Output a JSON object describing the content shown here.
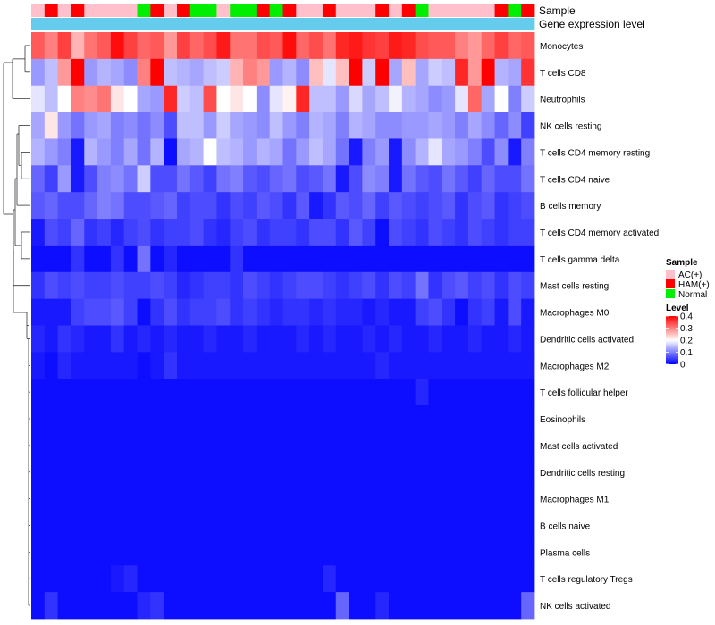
{
  "chart_data": {
    "type": "heatmap",
    "title": "",
    "annotation_tracks": [
      "Sample",
      "Gene expression level"
    ],
    "rows": [
      "Monocytes",
      "T cells CD8",
      "Neutrophils",
      "NK cells resting",
      "T cells CD4 memory resting",
      "T cells CD4 naive",
      "B cells memory",
      "T cells CD4 memory activated",
      "T cells gamma delta",
      "Mast cells resting",
      "Macrophages M0",
      "Dendritic cells activated",
      "Macrophages M2",
      "T cells follicular helper",
      "Eosinophils",
      "Mast cells activated",
      "Dendritic cells resting",
      "Macrophages M1",
      "B cells naive",
      "Plasma cells",
      "T cells regulatory  Tregs",
      "NK cells activated"
    ],
    "sample_groups": [
      "AC",
      "HAM",
      "AC",
      "HAM",
      "AC",
      "AC",
      "AC",
      "AC",
      "Normal",
      "HAM",
      "AC",
      "HAM",
      "Normal",
      "Normal",
      "AC",
      "Normal",
      "Normal",
      "HAM",
      "Normal",
      "HAM",
      "AC",
      "AC",
      "HAM",
      "AC",
      "AC",
      "AC",
      "HAM",
      "AC",
      "HAM",
      "Normal",
      "AC",
      "AC",
      "AC",
      "AC",
      "AC",
      "HAM",
      "Normal",
      "HAM"
    ],
    "values": [
      [
        0.33,
        0.3,
        0.35,
        0.26,
        0.31,
        0.33,
        0.39,
        0.35,
        0.32,
        0.33,
        0.28,
        0.35,
        0.32,
        0.34,
        0.38,
        0.31,
        0.31,
        0.34,
        0.33,
        0.39,
        0.32,
        0.34,
        0.31,
        0.37,
        0.38,
        0.36,
        0.35,
        0.38,
        0.37,
        0.34,
        0.33,
        0.33,
        0.3,
        0.28,
        0.32,
        0.35,
        0.32,
        0.33
      ],
      [
        0.12,
        0.15,
        0.28,
        0.4,
        0.12,
        0.14,
        0.13,
        0.11,
        0.3,
        0.4,
        0.15,
        0.14,
        0.13,
        0.15,
        0.16,
        0.26,
        0.3,
        0.28,
        0.12,
        0.14,
        0.11,
        0.25,
        0.18,
        0.25,
        0.4,
        0.16,
        0.4,
        0.13,
        0.25,
        0.13,
        0.16,
        0.15,
        0.37,
        0.28,
        0.4,
        0.14,
        0.13,
        0.36
      ],
      [
        0.18,
        0.15,
        0.2,
        0.3,
        0.29,
        0.31,
        0.22,
        0.2,
        0.13,
        0.12,
        0.37,
        0.16,
        0.15,
        0.34,
        0.2,
        0.22,
        0.2,
        0.11,
        0.18,
        0.21,
        0.37,
        0.15,
        0.15,
        0.12,
        0.17,
        0.13,
        0.15,
        0.19,
        0.14,
        0.13,
        0.11,
        0.12,
        0.18,
        0.32,
        0.13,
        0.2,
        0.1,
        0.16
      ],
      [
        0.13,
        0.22,
        0.12,
        0.09,
        0.12,
        0.13,
        0.1,
        0.11,
        0.09,
        0.11,
        0.06,
        0.15,
        0.15,
        0.12,
        0.16,
        0.13,
        0.12,
        0.11,
        0.15,
        0.12,
        0.1,
        0.14,
        0.13,
        0.1,
        0.14,
        0.13,
        0.11,
        0.11,
        0.12,
        0.12,
        0.13,
        0.12,
        0.1,
        0.13,
        0.11,
        0.08,
        0.11,
        0.05
      ],
      [
        0.14,
        0.12,
        0.1,
        0.02,
        0.14,
        0.12,
        0.1,
        0.13,
        0.09,
        0.14,
        0.01,
        0.13,
        0.14,
        0.2,
        0.15,
        0.14,
        0.12,
        0.14,
        0.13,
        0.09,
        0.12,
        0.15,
        0.13,
        0.09,
        0.02,
        0.1,
        0.12,
        0.02,
        0.11,
        0.14,
        0.18,
        0.13,
        0.12,
        0.1,
        0.06,
        0.11,
        0.02,
        0.1
      ],
      [
        0.08,
        0.05,
        0.12,
        0.02,
        0.06,
        0.1,
        0.11,
        0.09,
        0.16,
        0.06,
        0.06,
        0.09,
        0.07,
        0.05,
        0.09,
        0.1,
        0.07,
        0.06,
        0.08,
        0.09,
        0.06,
        0.07,
        0.09,
        0.02,
        0.06,
        0.11,
        0.1,
        0.02,
        0.09,
        0.07,
        0.06,
        0.09,
        0.07,
        0.05,
        0.08,
        0.06,
        0.06,
        0.09
      ],
      [
        0.07,
        0.08,
        0.06,
        0.06,
        0.08,
        0.1,
        0.09,
        0.06,
        0.06,
        0.07,
        0.08,
        0.05,
        0.06,
        0.06,
        0.04,
        0.06,
        0.05,
        0.07,
        0.06,
        0.04,
        0.07,
        0.02,
        0.04,
        0.07,
        0.06,
        0.08,
        0.05,
        0.07,
        0.06,
        0.05,
        0.06,
        0.07,
        0.04,
        0.06,
        0.07,
        0.04,
        0.05,
        0.06
      ],
      [
        0.02,
        0.06,
        0.05,
        0.08,
        0.04,
        0.05,
        0.03,
        0.05,
        0.06,
        0.04,
        0.05,
        0.05,
        0.06,
        0.04,
        0.03,
        0.05,
        0.06,
        0.04,
        0.05,
        0.05,
        0.04,
        0.06,
        0.06,
        0.04,
        0.07,
        0.05,
        0.01,
        0.06,
        0.05,
        0.04,
        0.06,
        0.05,
        0.04,
        0.06,
        0.05,
        0.04,
        0.05,
        0.05
      ],
      [
        0.01,
        0.01,
        0.01,
        0.04,
        0.01,
        0.01,
        0.04,
        0.01,
        0.09,
        0.01,
        0.03,
        0.01,
        0.01,
        0.01,
        0.01,
        0.04,
        0.01,
        0.01,
        0.01,
        0.01,
        0.01,
        0.01,
        0.01,
        0.01,
        0.01,
        0.01,
        0.01,
        0.01,
        0.01,
        0.01,
        0.01,
        0.01,
        0.01,
        0.01,
        0.01,
        0.01,
        0.01,
        0.01
      ],
      [
        0.04,
        0.06,
        0.05,
        0.06,
        0.05,
        0.05,
        0.06,
        0.05,
        0.05,
        0.06,
        0.05,
        0.03,
        0.04,
        0.05,
        0.05,
        0.04,
        0.06,
        0.05,
        0.04,
        0.05,
        0.06,
        0.06,
        0.05,
        0.04,
        0.05,
        0.06,
        0.04,
        0.06,
        0.05,
        0.09,
        0.04,
        0.06,
        0.07,
        0.05,
        0.06,
        0.04,
        0.06,
        0.05
      ],
      [
        0.02,
        0.02,
        0.02,
        0.05,
        0.06,
        0.06,
        0.07,
        0.05,
        0.01,
        0.04,
        0.06,
        0.04,
        0.05,
        0.05,
        0.06,
        0.04,
        0.05,
        0.04,
        0.03,
        0.04,
        0.04,
        0.03,
        0.04,
        0.03,
        0.03,
        0.02,
        0.03,
        0.02,
        0.02,
        0.05,
        0.06,
        0.04,
        0.01,
        0.04,
        0.05,
        0.02,
        0.06,
        0.02
      ],
      [
        0.03,
        0.02,
        0.04,
        0.03,
        0.02,
        0.02,
        0.04,
        0.02,
        0.03,
        0.02,
        0.03,
        0.02,
        0.02,
        0.03,
        0.02,
        0.02,
        0.03,
        0.02,
        0.02,
        0.02,
        0.03,
        0.02,
        0.03,
        0.02,
        0.02,
        0.03,
        0.02,
        0.03,
        0.02,
        0.02,
        0.03,
        0.02,
        0.02,
        0.03,
        0.02,
        0.02,
        0.03,
        0.02
      ],
      [
        0.02,
        0.01,
        0.03,
        0.02,
        0.02,
        0.02,
        0.02,
        0.02,
        0.01,
        0.02,
        0.04,
        0.02,
        0.02,
        0.02,
        0.02,
        0.02,
        0.02,
        0.02,
        0.02,
        0.02,
        0.02,
        0.02,
        0.02,
        0.02,
        0.02,
        0.02,
        0.03,
        0.02,
        0.02,
        0.02,
        0.02,
        0.02,
        0.02,
        0.02,
        0.02,
        0.02,
        0.02,
        0.02
      ],
      [
        0.01,
        0.01,
        0.01,
        0.01,
        0.01,
        0.01,
        0.01,
        0.01,
        0.01,
        0.01,
        0.01,
        0.01,
        0.01,
        0.01,
        0.01,
        0.01,
        0.01,
        0.01,
        0.01,
        0.01,
        0.01,
        0.01,
        0.01,
        0.01,
        0.01,
        0.01,
        0.01,
        0.01,
        0.01,
        0.03,
        0.01,
        0.01,
        0.01,
        0.01,
        0.01,
        0.01,
        0.01,
        0.01
      ],
      [
        0.01,
        0.01,
        0.01,
        0.01,
        0.01,
        0.01,
        0.01,
        0.01,
        0.01,
        0.01,
        0.01,
        0.01,
        0.01,
        0.01,
        0.01,
        0.01,
        0.01,
        0.01,
        0.01,
        0.01,
        0.01,
        0.01,
        0.01,
        0.01,
        0.01,
        0.01,
        0.01,
        0.01,
        0.01,
        0.01,
        0.01,
        0.01,
        0.01,
        0.01,
        0.01,
        0.01,
        0.01,
        0.01
      ],
      [
        0.01,
        0.01,
        0.01,
        0.01,
        0.01,
        0.01,
        0.01,
        0.01,
        0.01,
        0.01,
        0.01,
        0.01,
        0.01,
        0.01,
        0.01,
        0.01,
        0.01,
        0.01,
        0.01,
        0.01,
        0.01,
        0.01,
        0.01,
        0.01,
        0.01,
        0.01,
        0.01,
        0.01,
        0.01,
        0.01,
        0.01,
        0.01,
        0.01,
        0.01,
        0.01,
        0.01,
        0.01,
        0.01
      ],
      [
        0.01,
        0.01,
        0.01,
        0.01,
        0.01,
        0.01,
        0.01,
        0.01,
        0.01,
        0.01,
        0.01,
        0.01,
        0.01,
        0.01,
        0.01,
        0.01,
        0.01,
        0.01,
        0.01,
        0.01,
        0.01,
        0.01,
        0.01,
        0.01,
        0.01,
        0.01,
        0.01,
        0.01,
        0.01,
        0.01,
        0.01,
        0.01,
        0.01,
        0.01,
        0.01,
        0.01,
        0.01,
        0.01
      ],
      [
        0.01,
        0.01,
        0.01,
        0.01,
        0.01,
        0.01,
        0.01,
        0.01,
        0.01,
        0.01,
        0.01,
        0.01,
        0.01,
        0.01,
        0.01,
        0.01,
        0.01,
        0.01,
        0.01,
        0.01,
        0.01,
        0.01,
        0.01,
        0.01,
        0.01,
        0.01,
        0.01,
        0.01,
        0.01,
        0.01,
        0.01,
        0.01,
        0.01,
        0.01,
        0.01,
        0.01,
        0.01,
        0.01
      ],
      [
        0.01,
        0.01,
        0.01,
        0.01,
        0.01,
        0.01,
        0.01,
        0.01,
        0.01,
        0.01,
        0.01,
        0.01,
        0.01,
        0.01,
        0.01,
        0.01,
        0.01,
        0.01,
        0.01,
        0.01,
        0.01,
        0.01,
        0.01,
        0.01,
        0.01,
        0.01,
        0.01,
        0.01,
        0.01,
        0.01,
        0.01,
        0.01,
        0.01,
        0.01,
        0.01,
        0.01,
        0.01,
        0.01
      ],
      [
        0.01,
        0.01,
        0.01,
        0.01,
        0.01,
        0.01,
        0.01,
        0.01,
        0.01,
        0.01,
        0.01,
        0.01,
        0.01,
        0.01,
        0.01,
        0.01,
        0.01,
        0.01,
        0.01,
        0.01,
        0.01,
        0.01,
        0.01,
        0.01,
        0.01,
        0.01,
        0.01,
        0.01,
        0.01,
        0.01,
        0.01,
        0.01,
        0.01,
        0.01,
        0.01,
        0.01,
        0.01,
        0.01
      ],
      [
        0.01,
        0.01,
        0.01,
        0.01,
        0.01,
        0.01,
        0.02,
        0.03,
        0.01,
        0.01,
        0.01,
        0.01,
        0.01,
        0.01,
        0.01,
        0.01,
        0.01,
        0.01,
        0.01,
        0.01,
        0.01,
        0.01,
        0.03,
        0.01,
        0.01,
        0.01,
        0.01,
        0.01,
        0.01,
        0.01,
        0.01,
        0.01,
        0.01,
        0.01,
        0.01,
        0.01,
        0.01,
        0.01
      ],
      [
        0.01,
        0.04,
        0.01,
        0.01,
        0.01,
        0.01,
        0.01,
        0.01,
        0.03,
        0.04,
        0.01,
        0.01,
        0.01,
        0.01,
        0.01,
        0.01,
        0.01,
        0.01,
        0.01,
        0.01,
        0.01,
        0.01,
        0.01,
        0.08,
        0.01,
        0.01,
        0.03,
        0.01,
        0.01,
        0.01,
        0.01,
        0.01,
        0.01,
        0.01,
        0.01,
        0.01,
        0.01,
        0.08
      ]
    ],
    "color_scale": {
      "min": 0,
      "mid": 0.2,
      "max": 0.4,
      "low": "#0000FF",
      "midColor": "#FFFFFF",
      "high": "#FF0000"
    },
    "legend": {
      "sample_title": "Sample",
      "sample_entries": [
        {
          "key": "AC",
          "label": "AC(+)",
          "color": "#FFC0CB"
        },
        {
          "key": "HAM",
          "label": "HAM(+)",
          "color": "#FF0000"
        },
        {
          "key": "Normal",
          "label": "Normal",
          "color": "#00EE00"
        }
      ],
      "level_title": "Level",
      "level_ticks": [
        0.4,
        0.3,
        0.2,
        0.1,
        0
      ],
      "level_tick_labels": [
        "0.4",
        "0.3",
        "0.2",
        "0.1",
        "0"
      ]
    },
    "expression_track_color": "#66CCEE",
    "dendrogram_color": "#333333"
  }
}
